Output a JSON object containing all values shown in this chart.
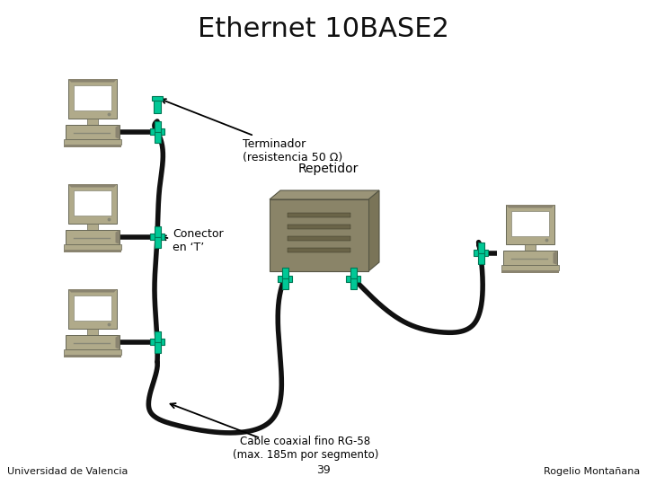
{
  "title": "Ethernet 10BASE2",
  "title_fontsize": 22,
  "background_color": "#ffffff",
  "labels": {
    "terminador": "Terminador\n(resistencia 50 Ω)",
    "repetidor": "Repetidor",
    "conector": "Conector\nen ‘T’",
    "cable": "Cable coaxial fino RG-58\n(max. 185m por segmento)"
  },
  "footer_left": "Universidad de Valencia",
  "footer_center": "39",
  "footer_right": "Rogelio Montañana",
  "computer_body_color": "#b0aa8a",
  "computer_shadow_color": "#8a8470",
  "monitor_screen_color": "#ffffff",
  "repeater_top_color": "#9a9478",
  "repeater_front_color": "#8a8468",
  "repeater_side_color": "#7a7458",
  "repeater_slot_color": "#6a6448",
  "connector_color": "#00c896",
  "connector_dark": "#007755",
  "cable_color": "#111111",
  "cable_linewidth": 4.0,
  "terminator_color": "#00c896"
}
